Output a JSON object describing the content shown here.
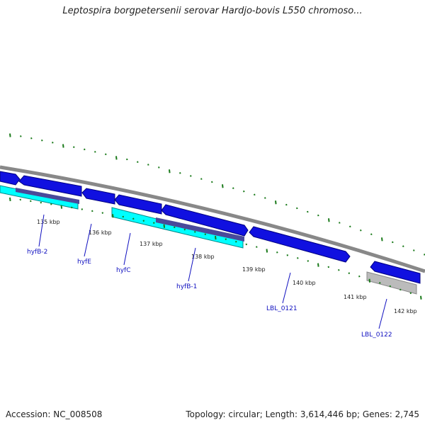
{
  "title": "Leptospira borgpetersenii serovar Hardjo-bovis L550 chromoso...",
  "footer": {
    "accession": "Accession: NC_008508",
    "summary": "Topology: circular; Length: 3,614,446 bp; Genes: 2,745"
  },
  "kbp_labels": [
    "135 kbp",
    "136 kbp",
    "137 kbp",
    "138 kbp",
    "139 kbp",
    "140 kbp",
    "141 kbp",
    "142 kbp"
  ],
  "gene_labels": [
    "hyfB-2",
    "hyfE",
    "hyfC",
    "hyfB-1",
    "LBL_0121",
    "LBL_0122"
  ],
  "colors": {
    "cds": "#1010e0",
    "cds_dark": "#000080",
    "cyan": "#00ffff",
    "purple": "#4a4a9a",
    "backbone": "#888888",
    "tick": "#1a7a1a",
    "grey_feature": "#bbbbbb"
  }
}
